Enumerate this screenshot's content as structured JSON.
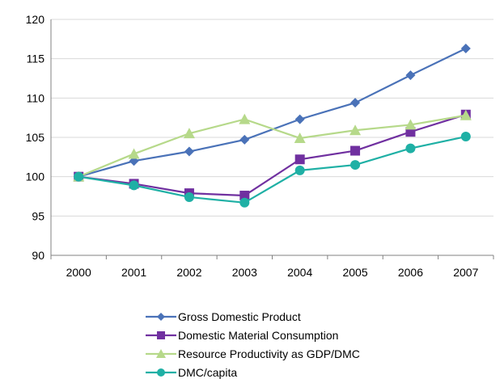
{
  "chart_data": {
    "type": "line",
    "title": "",
    "xlabel": "",
    "ylabel": "",
    "categories": [
      "2000",
      "2001",
      "2002",
      "2003",
      "2004",
      "2005",
      "2006",
      "2007"
    ],
    "ylim": [
      90,
      120
    ],
    "yticks": [
      90,
      95,
      100,
      105,
      110,
      115,
      120
    ],
    "grid": true,
    "legend_position": "bottom",
    "series": [
      {
        "name": "Gross Domestic Product",
        "color": "#4a72b8",
        "marker": "diamond",
        "values": [
          100,
          102,
          103.2,
          104.7,
          107.3,
          109.4,
          112.9,
          116.3
        ]
      },
      {
        "name": "Domestic Material Consumption",
        "color": "#7030a0",
        "marker": "square",
        "values": [
          100,
          99.1,
          97.9,
          97.6,
          102.2,
          103.3,
          105.7,
          107.9
        ]
      },
      {
        "name": "Resource Productivity as GDP/DMC",
        "color": "#b6d98a",
        "marker": "triangle",
        "values": [
          100,
          102.9,
          105.5,
          107.3,
          104.9,
          105.9,
          106.6,
          107.8
        ]
      },
      {
        "name": "DMC/capita",
        "color": "#1fb0a5",
        "marker": "circle",
        "values": [
          100,
          98.9,
          97.4,
          96.7,
          100.8,
          101.5,
          103.6,
          105.1
        ]
      }
    ]
  }
}
